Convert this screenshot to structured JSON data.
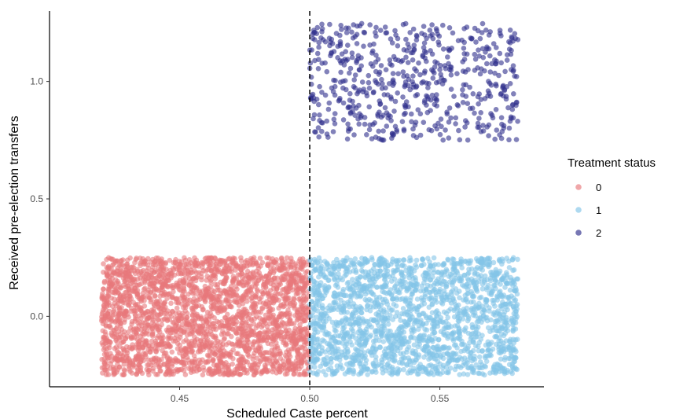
{
  "chart_data": {
    "type": "scatter",
    "title": "",
    "xlabel": "Scheduled Caste percent",
    "ylabel": "Received pre-election transfers",
    "xlim": [
      0.4,
      0.59
    ],
    "ylim": [
      -0.3,
      1.3
    ],
    "x_ticks": [
      0.45,
      0.5,
      0.55
    ],
    "x_tick_labels": [
      "0.45",
      "0.50",
      "0.55"
    ],
    "y_ticks": [
      0.0,
      0.5,
      1.0
    ],
    "y_tick_labels": [
      "0.0",
      "0.5",
      "1.0"
    ],
    "cutoff": 0.5,
    "cutoff_style": "dashed",
    "grid": false,
    "legend": {
      "title": "Treatment status",
      "placement": "right",
      "entries": [
        {
          "label": "0",
          "color": "#E8787B"
        },
        {
          "label": "1",
          "color": "#83C4E8"
        },
        {
          "label": "2",
          "color": "#2E2E8C"
        }
      ]
    },
    "series": [
      {
        "name": "0",
        "color": "#E8787B",
        "x_range": [
          0.42,
          0.5
        ],
        "y_center": 0.0,
        "y_jitter": [
          -0.25,
          0.25
        ],
        "n_points": 2600
      },
      {
        "name": "1",
        "color": "#83C4E8",
        "x_range": [
          0.5,
          0.58
        ],
        "y_center": 0.0,
        "y_jitter": [
          -0.25,
          0.25
        ],
        "n_points": 2000
      },
      {
        "name": "2",
        "color": "#2E2E8C",
        "x_range": [
          0.5,
          0.58
        ],
        "y_center": 1.0,
        "y_jitter": [
          -0.25,
          0.25
        ],
        "n_points": 600
      }
    ]
  }
}
